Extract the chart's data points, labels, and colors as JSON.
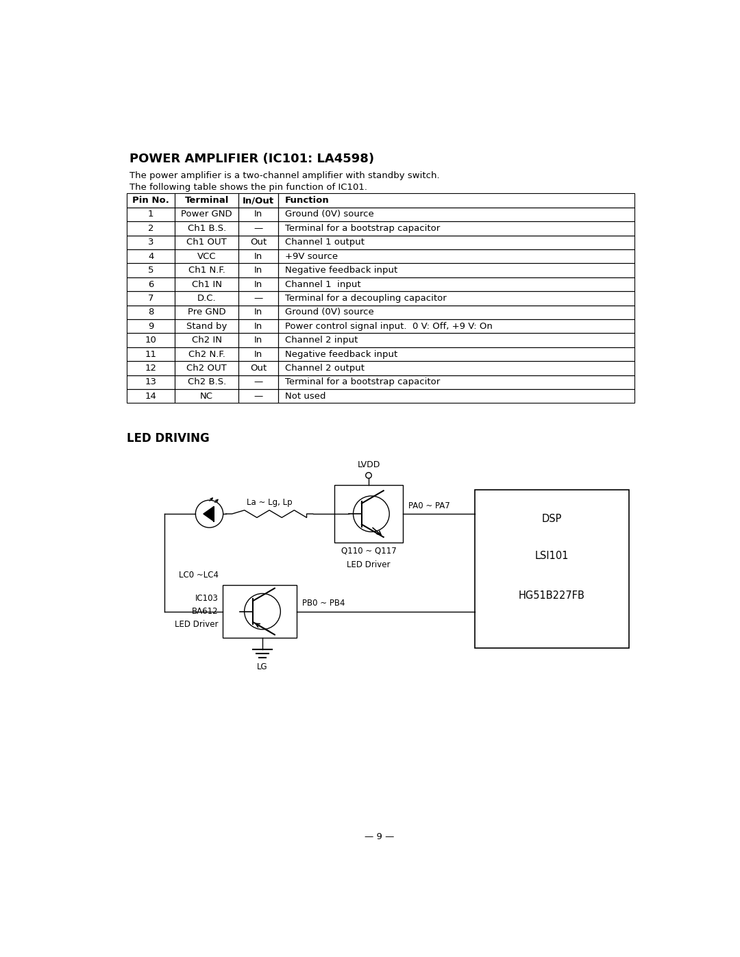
{
  "title": "POWER AMPLIFIER (IC101: LA4598)",
  "description_line1": "The power amplifier is a two-channel amplifier with standby switch.",
  "description_line2": "The following table shows the pin function of IC101.",
  "table_headers": [
    "Pin No.",
    "Terminal",
    "In/Out",
    "Function"
  ],
  "table_rows": [
    [
      "1",
      "Power GND",
      "In",
      "Ground (0V) source"
    ],
    [
      "2",
      "Ch1 B.S.",
      "—",
      "Terminal for a bootstrap capacitor"
    ],
    [
      "3",
      "Ch1 OUT",
      "Out",
      "Channel 1 output"
    ],
    [
      "4",
      "VCC",
      "In",
      "+9V source"
    ],
    [
      "5",
      "Ch1 N.F.",
      "In",
      "Negative feedback input"
    ],
    [
      "6",
      "Ch1 IN",
      "In",
      "Channel 1  input"
    ],
    [
      "7",
      "D.C.",
      "—",
      "Terminal for a decoupling capacitor"
    ],
    [
      "8",
      "Pre GND",
      "In",
      "Ground (0V) source"
    ],
    [
      "9",
      "Stand by",
      "In",
      "Power control signal input.  0 V: Off, +9 V: On"
    ],
    [
      "10",
      "Ch2 IN",
      "In",
      "Channel 2 input"
    ],
    [
      "11",
      "Ch2 N.F.",
      "In",
      "Negative feedback input"
    ],
    [
      "12",
      "Ch2 OUT",
      "Out",
      "Channel 2 output"
    ],
    [
      "13",
      "Ch2 B.S.",
      "—",
      "Terminal for a bootstrap capacitor"
    ],
    [
      "14",
      "NC",
      "—",
      "Not used"
    ]
  ],
  "led_section_title": "LED DRIVING",
  "page_number": "— 9 —",
  "bg_color": "#ffffff",
  "text_color": "#000000"
}
